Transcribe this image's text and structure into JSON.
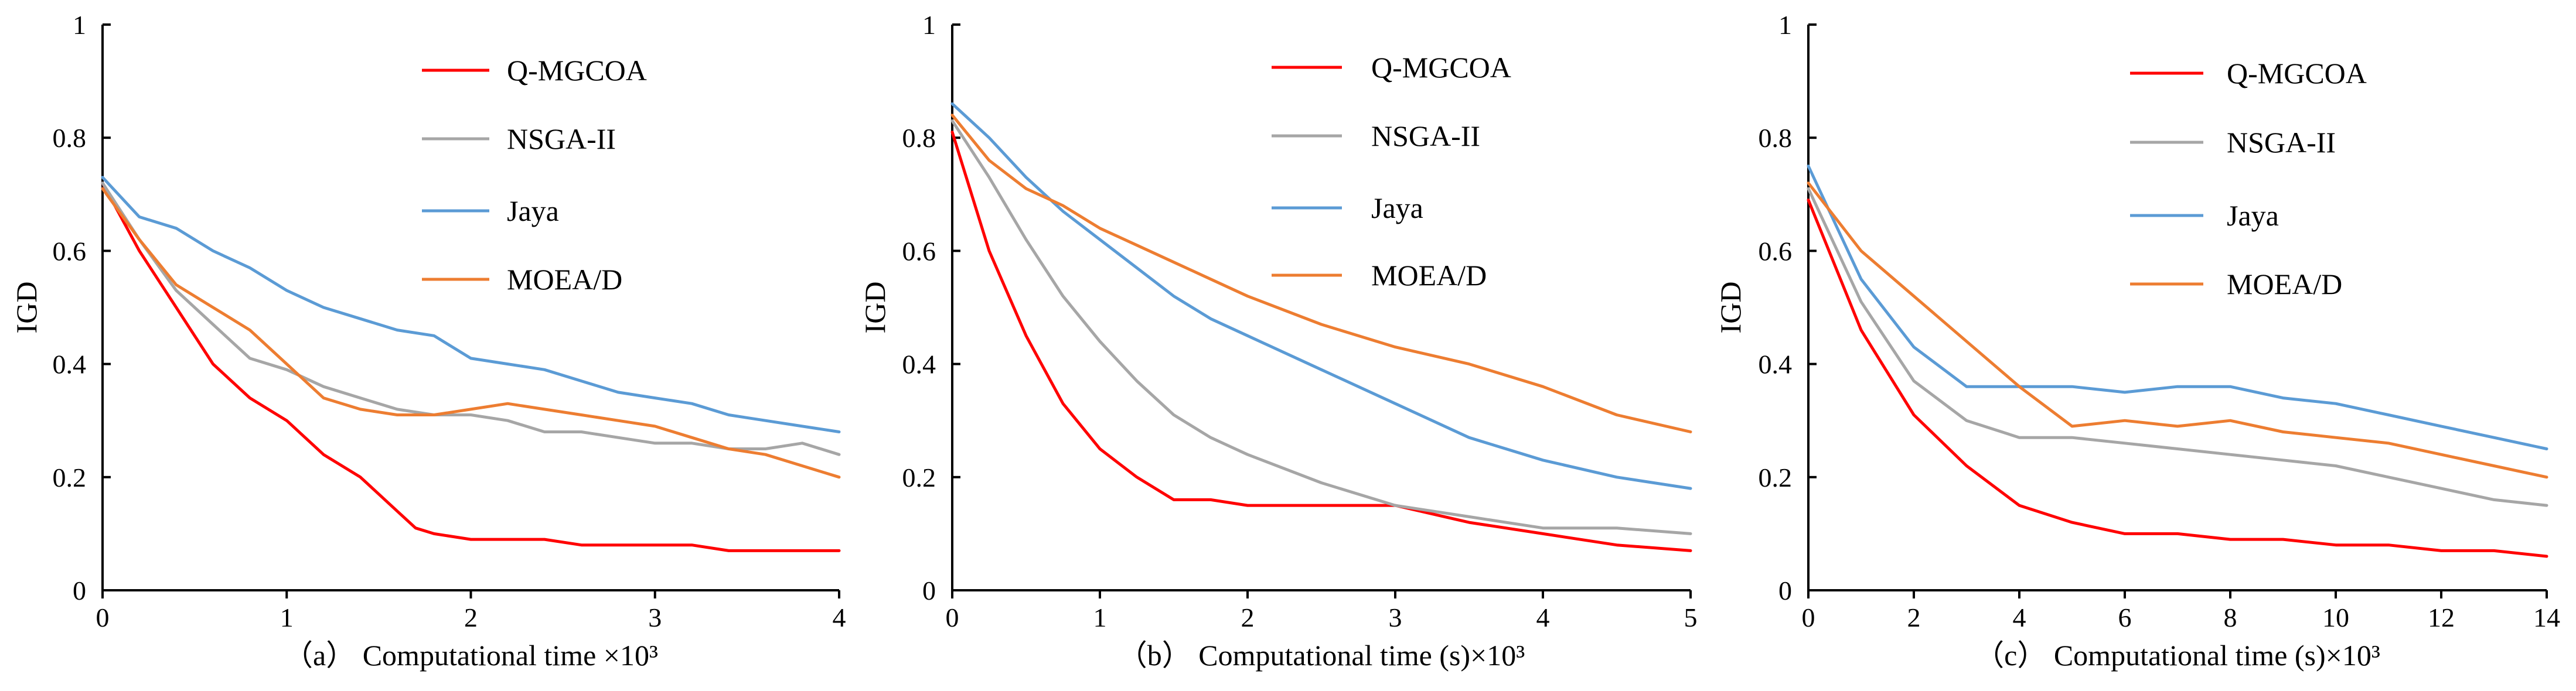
{
  "chart_data": [
    {
      "type": "line",
      "xlabel": "（a） Computational time ×10³",
      "ylabel": "IGD",
      "xlim": [
        0,
        4
      ],
      "ylim": [
        0,
        1
      ],
      "xticks": [
        "0",
        "1",
        "2",
        "3",
        "4"
      ],
      "yticks": [
        "0",
        "0.2",
        "0.4",
        "0.6",
        "0.8",
        "1"
      ],
      "legend": [
        "Q-MGCOA",
        "NSGA-II",
        "Jaya",
        "MOEA/D"
      ],
      "legend_position": "top-right",
      "series": [
        {
          "name": "Q-MGCOA",
          "color": "#ff0000",
          "x": [
            0,
            0.2,
            0.4,
            0.6,
            0.8,
            1.0,
            1.2,
            1.4,
            1.6,
            1.7,
            1.8,
            2.0,
            2.2,
            2.4,
            2.6,
            2.8,
            3.0,
            3.2,
            3.4,
            3.6,
            3.8,
            4.0
          ],
          "y": [
            0.72,
            0.6,
            0.5,
            0.4,
            0.34,
            0.3,
            0.24,
            0.2,
            0.14,
            0.11,
            0.1,
            0.09,
            0.09,
            0.09,
            0.08,
            0.08,
            0.08,
            0.08,
            0.07,
            0.07,
            0.07,
            0.07
          ]
        },
        {
          "name": "NSGA-II",
          "color": "#a6a6a6",
          "x": [
            0,
            0.2,
            0.4,
            0.6,
            0.8,
            1.0,
            1.2,
            1.4,
            1.6,
            1.8,
            2.0,
            2.2,
            2.4,
            2.6,
            2.8,
            3.0,
            3.2,
            3.4,
            3.6,
            3.8,
            4.0
          ],
          "y": [
            0.72,
            0.62,
            0.53,
            0.47,
            0.41,
            0.39,
            0.36,
            0.34,
            0.32,
            0.31,
            0.31,
            0.3,
            0.28,
            0.28,
            0.27,
            0.26,
            0.26,
            0.25,
            0.25,
            0.26,
            0.24
          ]
        },
        {
          "name": "Jaya",
          "color": "#5b9bd5",
          "x": [
            0,
            0.2,
            0.4,
            0.6,
            0.8,
            1.0,
            1.2,
            1.4,
            1.6,
            1.8,
            2.0,
            2.2,
            2.4,
            2.6,
            2.8,
            3.0,
            3.2,
            3.4,
            3.6,
            3.8,
            4.0
          ],
          "y": [
            0.73,
            0.66,
            0.64,
            0.6,
            0.57,
            0.53,
            0.5,
            0.48,
            0.46,
            0.45,
            0.41,
            0.4,
            0.39,
            0.37,
            0.35,
            0.34,
            0.33,
            0.31,
            0.3,
            0.29,
            0.28
          ]
        },
        {
          "name": "MOEA/D",
          "color": "#ed7d31",
          "x": [
            0,
            0.2,
            0.4,
            0.6,
            0.8,
            1.0,
            1.2,
            1.4,
            1.6,
            1.8,
            2.0,
            2.2,
            2.4,
            2.6,
            2.8,
            3.0,
            3.2,
            3.4,
            3.6,
            3.8,
            4.0
          ],
          "y": [
            0.71,
            0.62,
            0.54,
            0.5,
            0.46,
            0.4,
            0.34,
            0.32,
            0.31,
            0.31,
            0.32,
            0.33,
            0.32,
            0.31,
            0.3,
            0.29,
            0.27,
            0.25,
            0.24,
            0.22,
            0.2
          ]
        }
      ]
    },
    {
      "type": "line",
      "xlabel": "（b） Computational time (s)×10³",
      "ylabel": "IGD",
      "xlim": [
        0,
        5
      ],
      "ylim": [
        0,
        1
      ],
      "xticks": [
        "0",
        "1",
        "2",
        "3",
        "4",
        "5"
      ],
      "yticks": [
        "0",
        "0.2",
        "0.4",
        "0.6",
        "0.8",
        "1"
      ],
      "legend": [
        "Q-MGCOA",
        "NSGA-II",
        "Jaya",
        "MOEA/D"
      ],
      "legend_position": "top-right",
      "series": [
        {
          "name": "Q-MGCOA",
          "color": "#ff0000",
          "x": [
            0,
            0.25,
            0.5,
            0.75,
            1.0,
            1.25,
            1.5,
            1.75,
            2.0,
            2.5,
            3.0,
            3.5,
            4.0,
            4.5,
            5.0
          ],
          "y": [
            0.81,
            0.6,
            0.45,
            0.33,
            0.25,
            0.2,
            0.16,
            0.16,
            0.15,
            0.15,
            0.15,
            0.12,
            0.1,
            0.08,
            0.07
          ]
        },
        {
          "name": "NSGA-II",
          "color": "#a6a6a6",
          "x": [
            0,
            0.25,
            0.5,
            0.75,
            1.0,
            1.25,
            1.5,
            1.75,
            2.0,
            2.5,
            3.0,
            3.5,
            4.0,
            4.5,
            5.0
          ],
          "y": [
            0.83,
            0.73,
            0.62,
            0.52,
            0.44,
            0.37,
            0.31,
            0.27,
            0.24,
            0.19,
            0.15,
            0.13,
            0.11,
            0.11,
            0.1
          ]
        },
        {
          "name": "Jaya",
          "color": "#5b9bd5",
          "x": [
            0,
            0.25,
            0.5,
            0.75,
            1.0,
            1.25,
            1.5,
            1.75,
            2.0,
            2.5,
            3.0,
            3.5,
            4.0,
            4.5,
            5.0
          ],
          "y": [
            0.86,
            0.8,
            0.73,
            0.67,
            0.62,
            0.57,
            0.52,
            0.48,
            0.45,
            0.39,
            0.33,
            0.27,
            0.23,
            0.2,
            0.18
          ]
        },
        {
          "name": "MOEA/D",
          "color": "#ed7d31",
          "x": [
            0,
            0.25,
            0.5,
            0.75,
            1.0,
            1.25,
            1.5,
            1.75,
            2.0,
            2.5,
            3.0,
            3.5,
            4.0,
            4.5,
            5.0
          ],
          "y": [
            0.84,
            0.76,
            0.71,
            0.68,
            0.64,
            0.61,
            0.58,
            0.55,
            0.52,
            0.47,
            0.43,
            0.4,
            0.36,
            0.31,
            0.28
          ]
        }
      ]
    },
    {
      "type": "line",
      "xlabel": "（c） Computational time (s)×10³",
      "ylabel": "IGD",
      "xlim": [
        0,
        14
      ],
      "ylim": [
        0,
        1
      ],
      "xticks": [
        "0",
        "2",
        "4",
        "6",
        "8",
        "10",
        "12",
        "14"
      ],
      "yticks": [
        "0",
        "0.2",
        "0.4",
        "0.6",
        "0.8",
        "1"
      ],
      "legend": [
        "Q-MGCOA",
        "NSGA-II",
        "Jaya",
        "MOEA/D"
      ],
      "legend_position": "top-right",
      "series": [
        {
          "name": "Q-MGCOA",
          "color": "#ff0000",
          "x": [
            0,
            1,
            2,
            3,
            4,
            5,
            6,
            7,
            8,
            9,
            10,
            11,
            12,
            13,
            14
          ],
          "y": [
            0.69,
            0.46,
            0.31,
            0.22,
            0.15,
            0.12,
            0.1,
            0.1,
            0.09,
            0.09,
            0.08,
            0.08,
            0.07,
            0.07,
            0.06
          ]
        },
        {
          "name": "NSGA-II",
          "color": "#a6a6a6",
          "x": [
            0,
            1,
            2,
            3,
            4,
            5,
            6,
            7,
            8,
            9,
            10,
            11,
            12,
            13,
            14
          ],
          "y": [
            0.71,
            0.51,
            0.37,
            0.3,
            0.27,
            0.27,
            0.26,
            0.25,
            0.24,
            0.23,
            0.22,
            0.2,
            0.18,
            0.16,
            0.15
          ]
        },
        {
          "name": "Jaya",
          "color": "#5b9bd5",
          "x": [
            0,
            1,
            2,
            3,
            4,
            5,
            6,
            7,
            8,
            9,
            10,
            11,
            12,
            13,
            14
          ],
          "y": [
            0.75,
            0.55,
            0.43,
            0.36,
            0.36,
            0.36,
            0.35,
            0.36,
            0.36,
            0.34,
            0.33,
            0.31,
            0.29,
            0.27,
            0.25
          ]
        },
        {
          "name": "MOEA/D",
          "color": "#ed7d31",
          "x": [
            0,
            1,
            2,
            3,
            4,
            5,
            6,
            7,
            8,
            9,
            10,
            11,
            12,
            13,
            14
          ],
          "y": [
            0.72,
            0.6,
            0.52,
            0.44,
            0.36,
            0.29,
            0.3,
            0.29,
            0.3,
            0.28,
            0.27,
            0.26,
            0.24,
            0.22,
            0.2
          ]
        }
      ]
    }
  ]
}
